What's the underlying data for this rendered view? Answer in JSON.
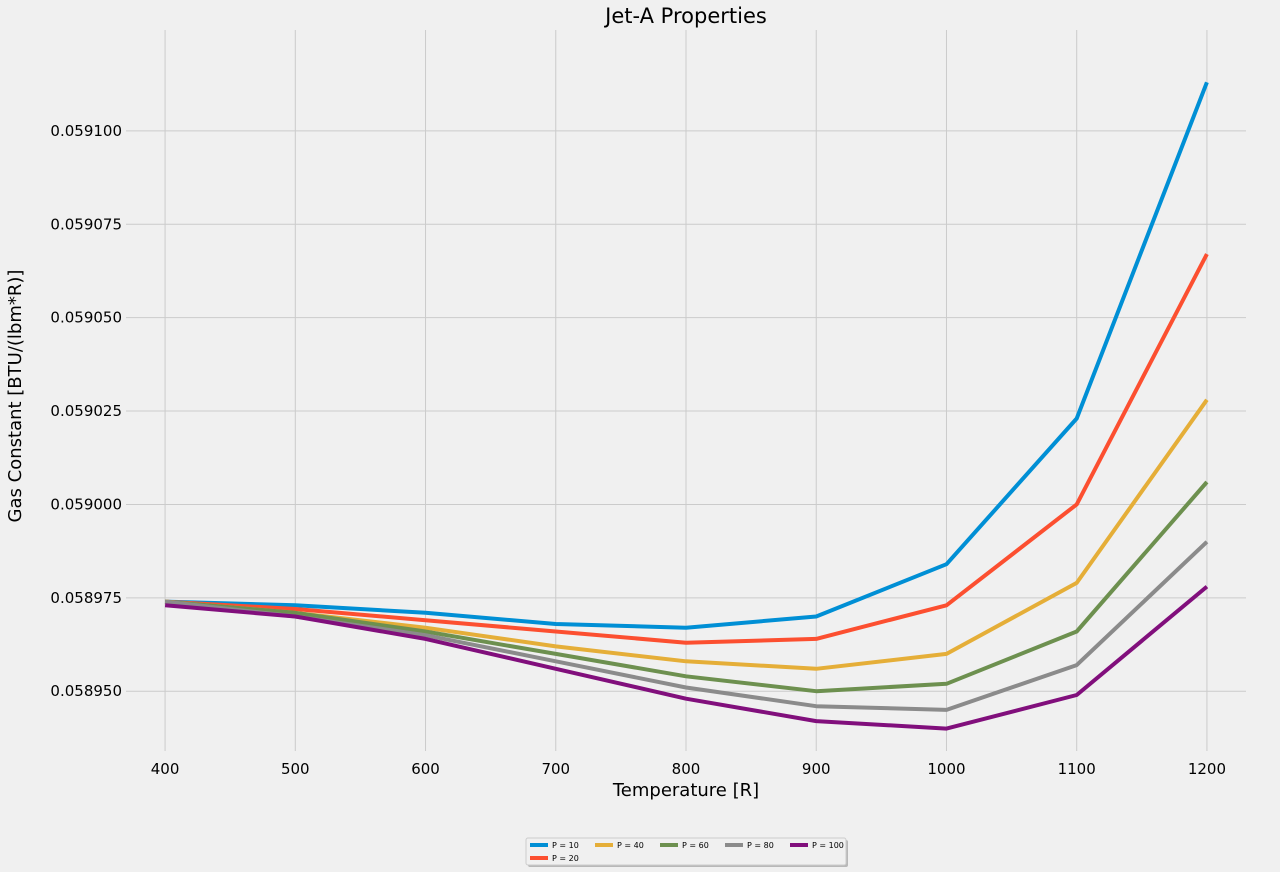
{
  "chart_data": {
    "type": "line",
    "title": "Jet-A Properties",
    "xlabel": "Temperature [R]",
    "ylabel": "Gas Constant [BTU/(lbm*R)]",
    "x": [
      400,
      500,
      600,
      700,
      800,
      900,
      1000,
      1100,
      1200
    ],
    "xticks": [
      "400",
      "500",
      "600",
      "700",
      "800",
      "900",
      "1000",
      "1100",
      "1200"
    ],
    "yticks": [
      "0.058950",
      "0.058975",
      "0.059000",
      "0.059025",
      "0.059050",
      "0.059075",
      "0.059100"
    ],
    "xlim": [
      370,
      1230
    ],
    "ylim": [
      0.058934,
      0.059127
    ],
    "grid": true,
    "legend_position": "bottom-center",
    "series": [
      {
        "name": "P = 10",
        "color": "#008fd5",
        "values": [
          0.058974,
          0.058973,
          0.058971,
          0.058968,
          0.058967,
          0.05897,
          0.058984,
          0.059023,
          0.059113
        ]
      },
      {
        "name": "P = 20",
        "color": "#fc4f30",
        "values": [
          0.058974,
          0.058972,
          0.058969,
          0.058966,
          0.058963,
          0.058964,
          0.058973,
          0.059,
          0.059067
        ]
      },
      {
        "name": "P = 40",
        "color": "#e5ae38",
        "values": [
          0.058974,
          0.058971,
          0.058967,
          0.058962,
          0.058958,
          0.058956,
          0.05896,
          0.058979,
          0.059028
        ]
      },
      {
        "name": "P = 60",
        "color": "#6d904f",
        "values": [
          0.058974,
          0.058971,
          0.058966,
          0.05896,
          0.058954,
          0.05895,
          0.058952,
          0.058966,
          0.059006
        ]
      },
      {
        "name": "P = 80",
        "color": "#8b8b8b",
        "values": [
          0.058974,
          0.05897,
          0.058965,
          0.058958,
          0.058951,
          0.058946,
          0.058945,
          0.058957,
          0.05899
        ]
      },
      {
        "name": "P = 100",
        "color": "#810f7c",
        "values": [
          0.058973,
          0.05897,
          0.058964,
          0.058956,
          0.058948,
          0.058942,
          0.05894,
          0.058949,
          0.058978
        ]
      }
    ]
  },
  "colors": {
    "background": "#f0f0f0",
    "grid": "#cbcbcb",
    "text": "#000000"
  }
}
